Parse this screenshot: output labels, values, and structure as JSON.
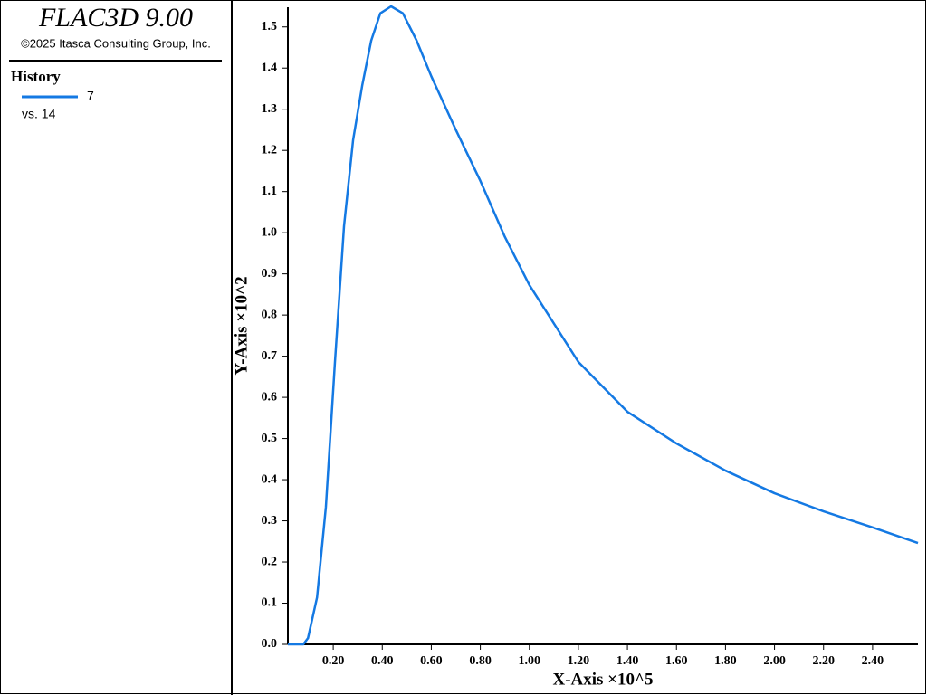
{
  "sidebar": {
    "title": "FLAC3D 9.00",
    "copyright": "©2025 Itasca Consulting Group, Inc.",
    "heading": "History",
    "versus": "vs. 14"
  },
  "chart_data": {
    "type": "line",
    "x_label": "X-Axis ×10^5",
    "y_label": "Y-Axis ×10^2",
    "x": [
      0.015,
      0.078,
      0.097,
      0.134,
      0.17,
      0.207,
      0.244,
      0.281,
      0.318,
      0.355,
      0.392,
      0.436,
      0.484,
      0.54,
      0.6,
      0.7,
      0.8,
      0.9,
      1.0,
      1.2,
      1.4,
      1.6,
      1.8,
      2.0,
      2.2,
      2.4,
      2.585
    ],
    "series": [
      {
        "name": "7",
        "color": "#1479e3",
        "values": [
          0,
          0,
          0.015,
          0.114,
          0.334,
          0.686,
          1.016,
          1.225,
          1.357,
          1.467,
          1.533,
          1.55,
          1.533,
          1.467,
          1.38,
          1.25,
          1.126,
          0.99,
          0.873,
          0.686,
          0.565,
          0.488,
          0.422,
          0.367,
          0.323,
          0.284,
          0.246
        ]
      }
    ],
    "xlim": [
      0.015,
      2.585
    ],
    "ylim": [
      0,
      1.55
    ],
    "xticks": [
      {
        "value": 0.2,
        "label": "0.20"
      },
      {
        "value": 0.4,
        "label": "0.40"
      },
      {
        "value": 0.6,
        "label": "0.60"
      },
      {
        "value": 0.8,
        "label": "0.80"
      },
      {
        "value": 1.0,
        "label": "1.00"
      },
      {
        "value": 1.2,
        "label": "1.20"
      },
      {
        "value": 1.4,
        "label": "1.40"
      },
      {
        "value": 1.6,
        "label": "1.60"
      },
      {
        "value": 1.8,
        "label": "1.80"
      },
      {
        "value": 2.0,
        "label": "2.00"
      },
      {
        "value": 2.2,
        "label": "2.20"
      },
      {
        "value": 2.4,
        "label": "2.40"
      }
    ],
    "yticks": [
      {
        "value": 0,
        "label": "0.0"
      },
      0.1,
      0.2,
      0.3,
      0.4,
      0.5,
      0.6,
      0.7,
      0.8,
      0.9,
      {
        "value": 1,
        "label": "1.0"
      },
      1.1,
      1.2,
      1.3,
      1.4,
      1.5
    ]
  }
}
